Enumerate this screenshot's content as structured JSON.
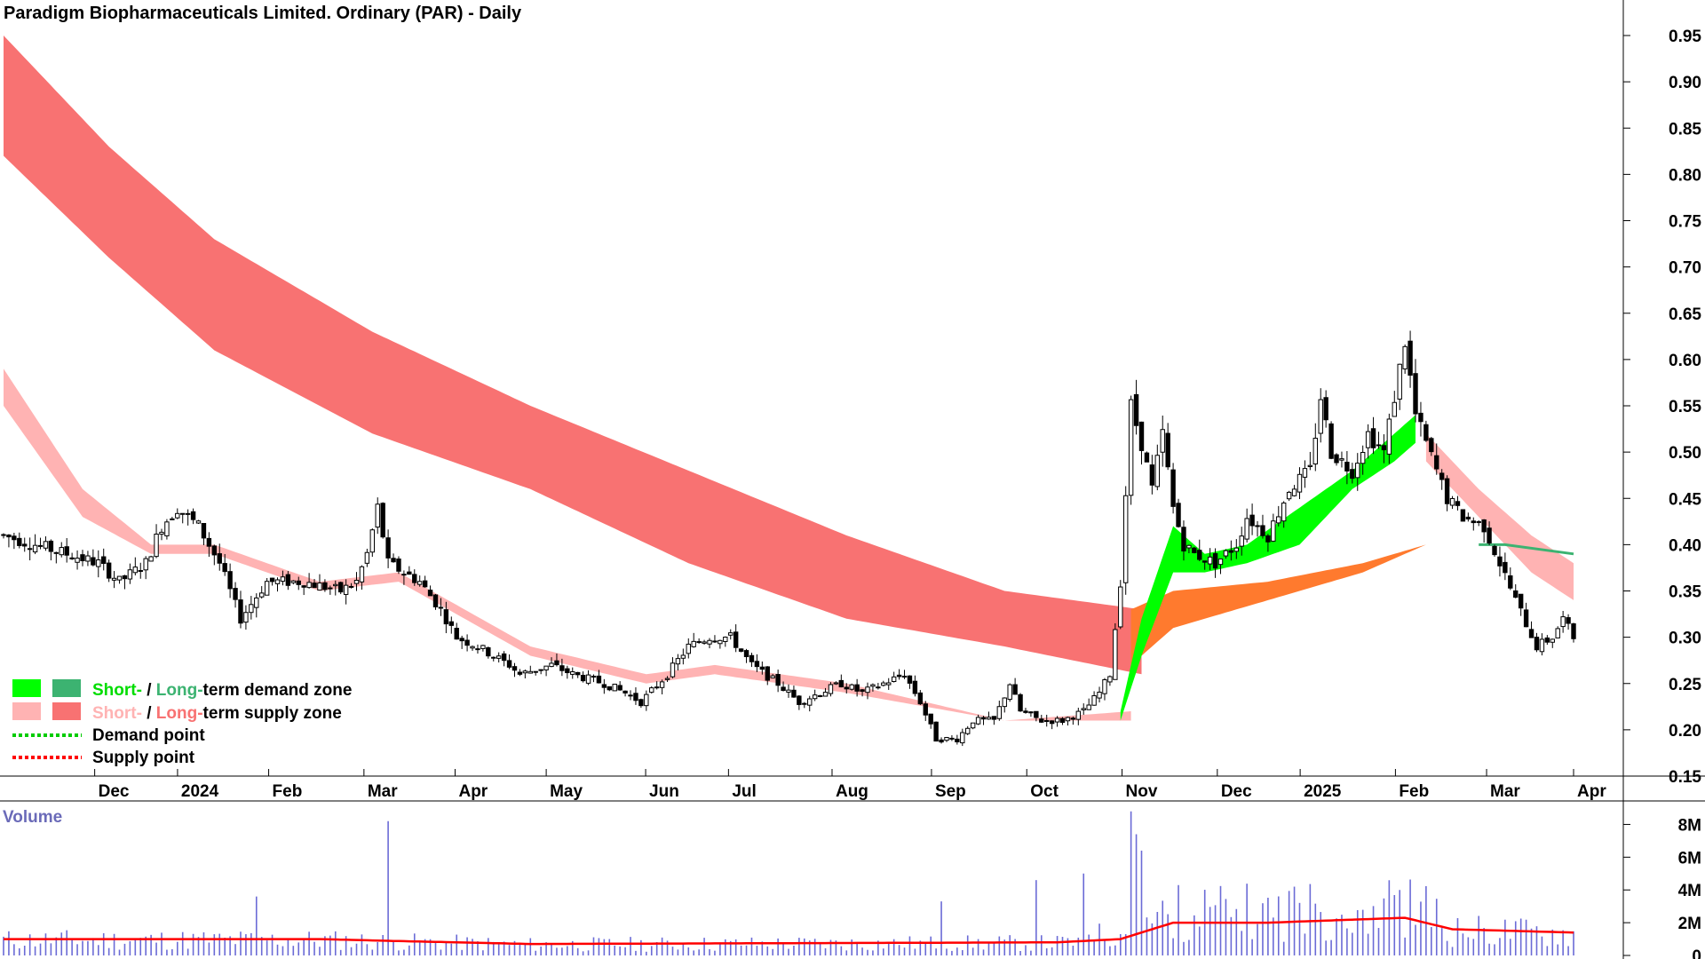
{
  "colors": {
    "short_demand": "#00ff00",
    "long_demand": "#3cb371",
    "short_supply": "#ffb3b3",
    "long_supply": "#f87272",
    "orange_zone": "#ff7a2e",
    "demand_point": "#00cc00",
    "supply_point": "#ff0000",
    "volume_bar": "#6b6bd6",
    "volume_ma": "#ff0000"
  },
  "legend": {
    "demand_short": "Short-",
    "demand_sep": " / ",
    "demand_long": "Long-",
    "demand_rest": "term demand zone",
    "supply_short": "Short-",
    "supply_sep": " / ",
    "supply_long": "Long-",
    "supply_rest": "term supply zone",
    "demand_point": "Demand point",
    "supply_point": "Supply point"
  },
  "chart_data": {
    "type": "candlestick",
    "title": "Paradigm Biopharmaceuticals Limited. Ordinary (PAR) - Daily",
    "x_ticks": [
      "Dec",
      "2024",
      "Feb",
      "Mar",
      "Apr",
      "May",
      "Jun",
      "Jul",
      "Aug",
      "Sep",
      "Oct",
      "Nov",
      "Dec",
      "2025",
      "Feb",
      "Mar",
      "Apr"
    ],
    "y_ticks": [
      "0.95",
      "0.90",
      "0.85",
      "0.80",
      "0.75",
      "0.70",
      "0.65",
      "0.60",
      "0.55",
      "0.50",
      "0.45",
      "0.40",
      "0.35",
      "0.30",
      "0.25",
      "0.20",
      "0.15"
    ],
    "ylim": [
      0.15,
      0.95
    ],
    "price_key_points": [
      [
        0,
        0.41
      ],
      [
        12,
        0.39
      ],
      [
        18,
        0.38
      ],
      [
        22,
        0.36
      ],
      [
        27,
        0.38
      ],
      [
        30,
        0.42
      ],
      [
        33,
        0.44
      ],
      [
        37,
        0.42
      ],
      [
        41,
        0.38
      ],
      [
        45,
        0.32
      ],
      [
        50,
        0.36
      ],
      [
        57,
        0.36
      ],
      [
        64,
        0.35
      ],
      [
        67,
        0.36
      ],
      [
        69,
        0.39
      ],
      [
        71,
        0.44
      ],
      [
        73,
        0.38
      ],
      [
        79,
        0.36
      ],
      [
        83,
        0.33
      ],
      [
        86,
        0.3
      ],
      [
        90,
        0.29
      ],
      [
        96,
        0.27
      ],
      [
        98,
        0.26
      ],
      [
        104,
        0.27
      ],
      [
        108,
        0.26
      ],
      [
        114,
        0.25
      ],
      [
        118,
        0.24
      ],
      [
        121,
        0.23
      ],
      [
        126,
        0.26
      ],
      [
        130,
        0.29
      ],
      [
        134,
        0.3
      ],
      [
        138,
        0.3
      ],
      [
        142,
        0.27
      ],
      [
        147,
        0.25
      ],
      [
        151,
        0.23
      ],
      [
        155,
        0.24
      ],
      [
        159,
        0.25
      ],
      [
        163,
        0.24
      ],
      [
        167,
        0.25
      ],
      [
        171,
        0.26
      ],
      [
        174,
        0.23
      ],
      [
        177,
        0.19
      ],
      [
        181,
        0.19
      ],
      [
        184,
        0.21
      ],
      [
        188,
        0.21
      ],
      [
        191,
        0.25
      ],
      [
        193,
        0.22
      ],
      [
        197,
        0.21
      ],
      [
        201,
        0.21
      ],
      [
        205,
        0.22
      ],
      [
        208,
        0.24
      ],
      [
        210,
        0.26
      ],
      [
        212,
        0.36
      ],
      [
        214,
        0.55
      ],
      [
        216,
        0.51
      ],
      [
        218,
        0.46
      ],
      [
        220,
        0.52
      ],
      [
        222,
        0.44
      ],
      [
        224,
        0.4
      ],
      [
        226,
        0.39
      ],
      [
        230,
        0.38
      ],
      [
        234,
        0.4
      ],
      [
        236,
        0.43
      ],
      [
        240,
        0.41
      ],
      [
        244,
        0.46
      ],
      [
        248,
        0.48
      ],
      [
        250,
        0.56
      ],
      [
        252,
        0.5
      ],
      [
        256,
        0.48
      ],
      [
        259,
        0.52
      ],
      [
        262,
        0.5
      ],
      [
        264,
        0.56
      ],
      [
        266,
        0.62
      ],
      [
        268,
        0.54
      ],
      [
        270,
        0.51
      ],
      [
        274,
        0.45
      ],
      [
        277,
        0.43
      ],
      [
        281,
        0.42
      ],
      [
        284,
        0.38
      ],
      [
        287,
        0.34
      ],
      [
        291,
        0.29
      ],
      [
        294,
        0.3
      ],
      [
        296,
        0.32
      ],
      [
        298,
        0.3
      ]
    ],
    "supply_zone_long": {
      "top": [
        [
          0,
          0.95
        ],
        [
          20,
          0.83
        ],
        [
          40,
          0.73
        ],
        [
          70,
          0.63
        ],
        [
          100,
          0.55
        ],
        [
          130,
          0.48
        ],
        [
          160,
          0.41
        ],
        [
          190,
          0.35
        ],
        [
          216,
          0.33
        ]
      ],
      "bottom": [
        [
          0,
          0.82
        ],
        [
          20,
          0.71
        ],
        [
          40,
          0.61
        ],
        [
          70,
          0.52
        ],
        [
          100,
          0.46
        ],
        [
          130,
          0.38
        ],
        [
          160,
          0.32
        ],
        [
          190,
          0.29
        ],
        [
          216,
          0.26
        ]
      ]
    },
    "supply_zone_short": {
      "top": [
        [
          0,
          0.59
        ],
        [
          15,
          0.46
        ],
        [
          28,
          0.4
        ],
        [
          40,
          0.4
        ],
        [
          60,
          0.36
        ],
        [
          75,
          0.37
        ],
        [
          100,
          0.29
        ],
        [
          122,
          0.26
        ],
        [
          135,
          0.27
        ],
        [
          160,
          0.25
        ],
        [
          190,
          0.21
        ],
        [
          214,
          0.22
        ]
      ],
      "bottom": [
        [
          0,
          0.55
        ],
        [
          15,
          0.43
        ],
        [
          28,
          0.39
        ],
        [
          40,
          0.39
        ],
        [
          60,
          0.35
        ],
        [
          75,
          0.36
        ],
        [
          100,
          0.28
        ],
        [
          122,
          0.25
        ],
        [
          135,
          0.26
        ],
        [
          160,
          0.24
        ],
        [
          190,
          0.21
        ],
        [
          214,
          0.21
        ]
      ]
    },
    "supply_zone_short_late": {
      "top": [
        [
          270,
          0.52
        ],
        [
          280,
          0.46
        ],
        [
          290,
          0.41
        ],
        [
          298,
          0.38
        ]
      ],
      "bottom": [
        [
          270,
          0.49
        ],
        [
          280,
          0.43
        ],
        [
          290,
          0.37
        ],
        [
          298,
          0.34
        ]
      ]
    },
    "demand_zone_short": {
      "top": [
        [
          212,
          0.22
        ],
        [
          216,
          0.32
        ],
        [
          222,
          0.42
        ],
        [
          228,
          0.39
        ],
        [
          236,
          0.4
        ],
        [
          246,
          0.44
        ],
        [
          256,
          0.48
        ],
        [
          264,
          0.52
        ],
        [
          268,
          0.54
        ]
      ],
      "bottom": [
        [
          212,
          0.21
        ],
        [
          216,
          0.28
        ],
        [
          222,
          0.37
        ],
        [
          228,
          0.37
        ],
        [
          236,
          0.38
        ],
        [
          246,
          0.4
        ],
        [
          256,
          0.46
        ],
        [
          264,
          0.49
        ],
        [
          268,
          0.51
        ]
      ]
    },
    "orange_zone_long": {
      "top": [
        [
          214,
          0.33
        ],
        [
          222,
          0.35
        ],
        [
          240,
          0.36
        ],
        [
          258,
          0.38
        ],
        [
          270,
          0.4
        ],
        [
          280,
          0.4
        ]
      ],
      "bottom": [
        [
          214,
          0.27
        ],
        [
          222,
          0.31
        ],
        [
          240,
          0.34
        ],
        [
          258,
          0.37
        ],
        [
          270,
          0.4
        ],
        [
          280,
          0.4
        ]
      ]
    },
    "long_demand_line": [
      [
        280,
        0.4
      ],
      [
        285,
        0.4
      ],
      [
        298,
        0.39
      ]
    ],
    "volume": {
      "title": "Volume",
      "y_ticks": [
        "8M",
        "6M",
        "4M",
        "2M",
        "0"
      ],
      "ylim": [
        0,
        9
      ],
      "unit": "M",
      "spikes": [
        [
          73,
          8.2
        ],
        [
          48,
          3.6
        ],
        [
          214,
          8.8
        ],
        [
          216,
          6.4
        ],
        [
          215,
          7.4
        ],
        [
          245,
          4.2
        ],
        [
          265,
          4.0
        ],
        [
          205,
          5.0
        ],
        [
          196,
          4.6
        ],
        [
          178,
          3.3
        ]
      ],
      "ma": [
        [
          0,
          1.0
        ],
        [
          60,
          1.0
        ],
        [
          72,
          0.9
        ],
        [
          100,
          0.7
        ],
        [
          200,
          0.8
        ],
        [
          212,
          1.0
        ],
        [
          222,
          2.0
        ],
        [
          240,
          2.0
        ],
        [
          266,
          2.3
        ],
        [
          275,
          1.6
        ],
        [
          298,
          1.4
        ]
      ]
    }
  }
}
